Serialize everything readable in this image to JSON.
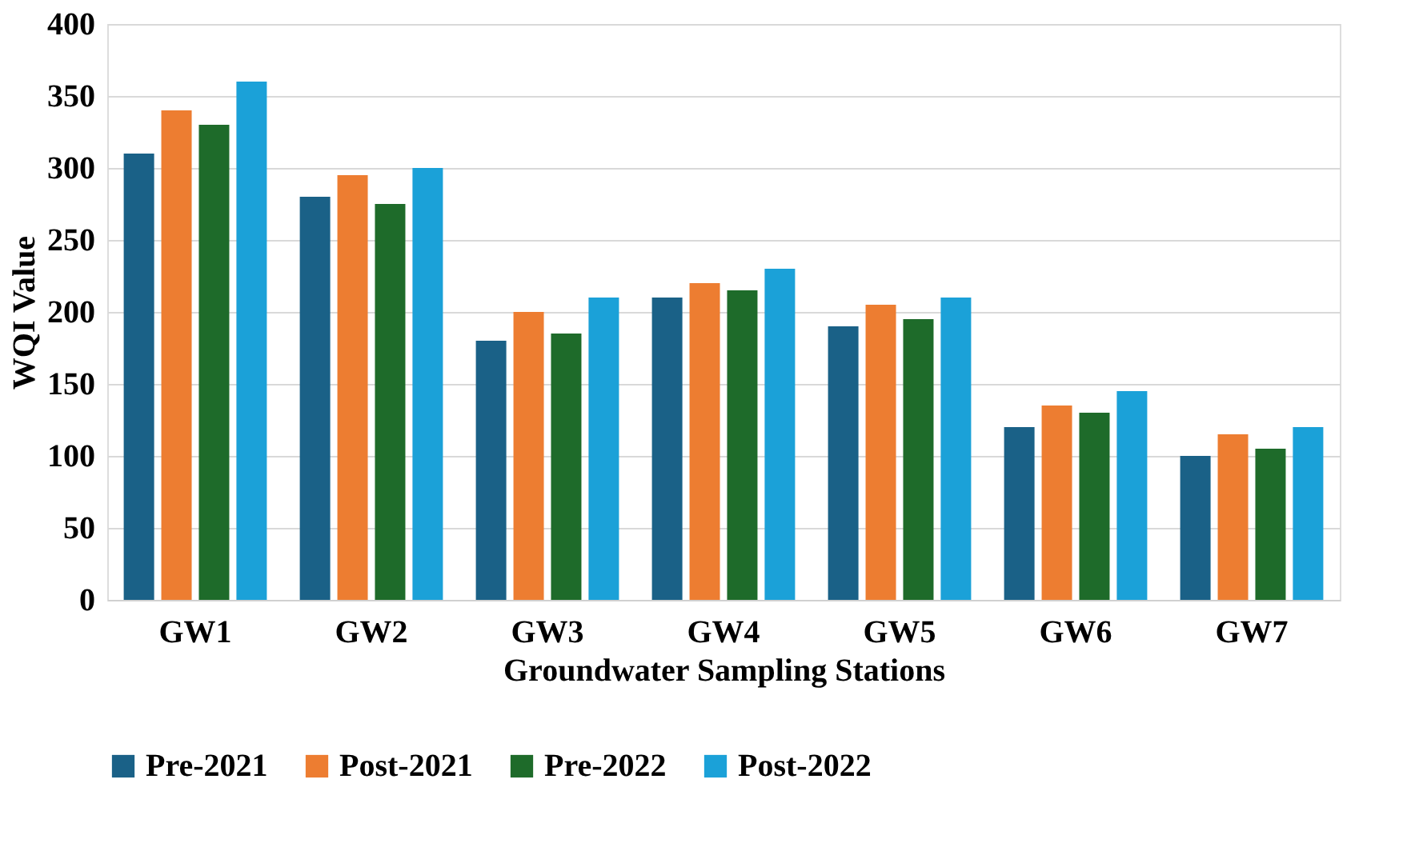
{
  "chart_data": {
    "type": "bar",
    "xlabel": "Groundwater Sampling Stations",
    "ylabel": "WQI Value",
    "categories": [
      "GW1",
      "GW2",
      "GW3",
      "GW4",
      "GW5",
      "GW6",
      "GW7"
    ],
    "series": [
      {
        "name": "Pre-2021",
        "color": "#1a6187",
        "values": [
          310,
          280,
          180,
          210,
          190,
          120,
          100
        ]
      },
      {
        "name": "Post-2021",
        "color": "#ed7d31",
        "values": [
          340,
          295,
          200,
          220,
          205,
          135,
          115
        ]
      },
      {
        "name": "Pre-2022",
        "color": "#1e6b2a",
        "values": [
          330,
          275,
          185,
          215,
          195,
          130,
          105
        ]
      },
      {
        "name": "Post-2022",
        "color": "#1ba1d8",
        "values": [
          360,
          300,
          210,
          230,
          210,
          145,
          120
        ]
      }
    ],
    "ylim": [
      0,
      400
    ],
    "yticks": [
      0,
      50,
      100,
      150,
      200,
      250,
      300,
      350,
      400
    ],
    "grid": "y",
    "legend": "bottom"
  }
}
